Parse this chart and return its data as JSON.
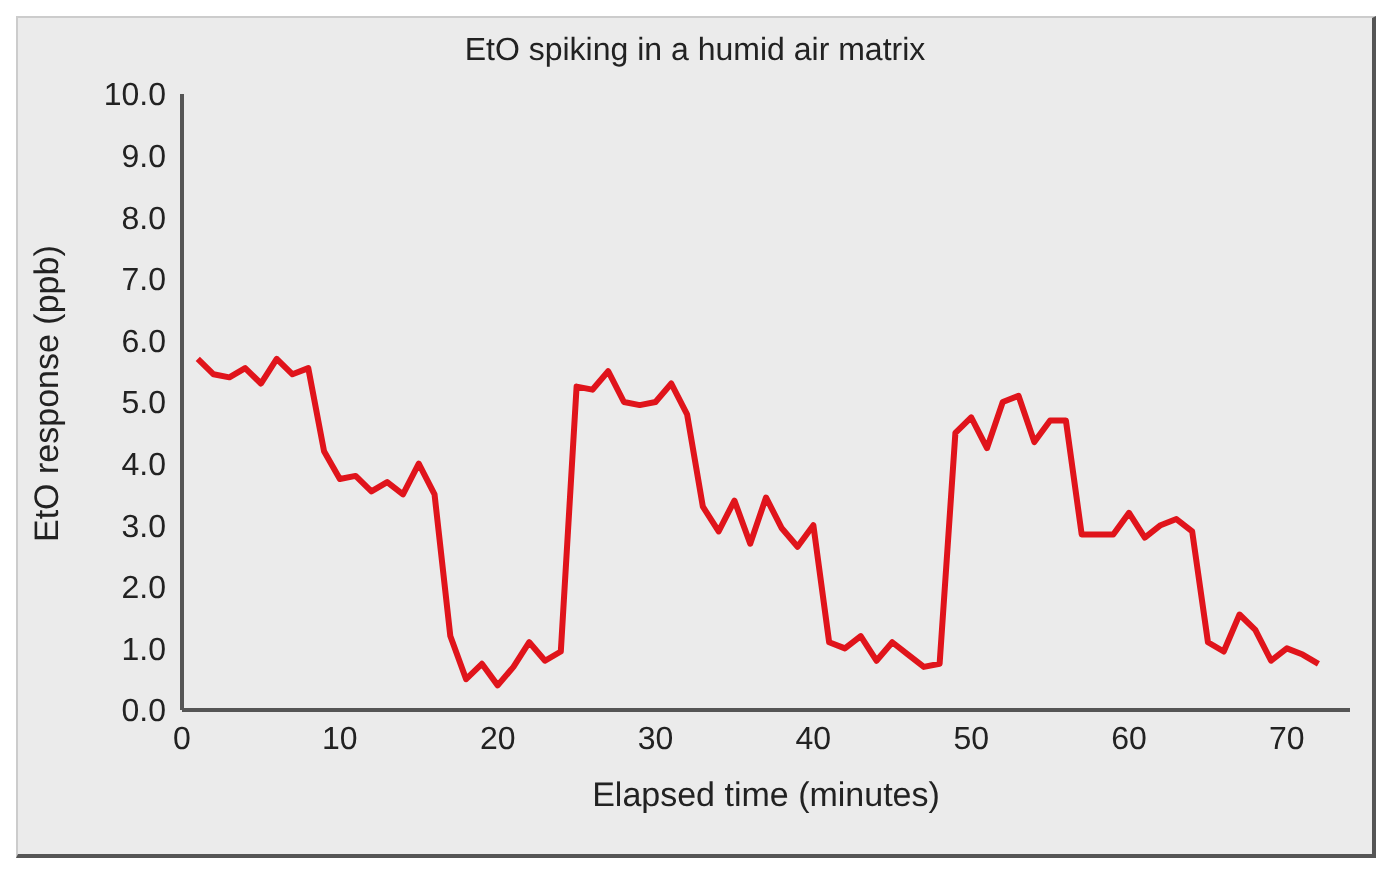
{
  "chart_data": {
    "type": "line",
    "title": "EtO spiking in a humid air matrix",
    "xlabel": "Elapsed time (minutes)",
    "ylabel": "EtO response (ppb)",
    "x": [
      1,
      2,
      3,
      4,
      5,
      6,
      7,
      8,
      9,
      10,
      11,
      12,
      13,
      14,
      15,
      16,
      17,
      18,
      19,
      20,
      21,
      22,
      23,
      24,
      25,
      26,
      27,
      28,
      29,
      30,
      31,
      32,
      33,
      34,
      35,
      36,
      37,
      38,
      39,
      40,
      41,
      42,
      43,
      44,
      45,
      46,
      47,
      48,
      49,
      50,
      51,
      52,
      53,
      54,
      55,
      56,
      57,
      58,
      59,
      60,
      61,
      62,
      63,
      64,
      65,
      66,
      67,
      68,
      69,
      70,
      71,
      72
    ],
    "series": [
      {
        "color": "#e0141b",
        "values": [
          5.7,
          5.45,
          5.4,
          5.55,
          5.3,
          5.7,
          5.45,
          5.55,
          4.2,
          3.75,
          3.8,
          3.55,
          3.7,
          3.5,
          4.0,
          3.5,
          1.2,
          0.5,
          0.75,
          0.4,
          0.7,
          1.1,
          0.8,
          0.95,
          5.25,
          5.2,
          5.5,
          5.0,
          4.95,
          5.0,
          5.3,
          4.8,
          3.3,
          2.9,
          3.4,
          2.7,
          3.45,
          2.95,
          2.65,
          3.0,
          1.1,
          1.0,
          1.2,
          0.8,
          1.1,
          0.9,
          0.7,
          0.75,
          4.5,
          4.75,
          4.25,
          5.0,
          5.1,
          4.35,
          4.7,
          4.7,
          2.85,
          2.85,
          2.85,
          3.2,
          2.8,
          3.0,
          3.1,
          2.9,
          1.1,
          0.95,
          1.55,
          1.3,
          0.8,
          1.0,
          0.9,
          0.75
        ]
      }
    ],
    "xlim": [
      0,
      74
    ],
    "xticks": [
      0,
      10,
      20,
      30,
      40,
      50,
      60,
      70
    ],
    "ylim": [
      0,
      10
    ],
    "yticks": [
      {
        "value": 0,
        "label": "0.0"
      },
      {
        "value": 1,
        "label": "1.0"
      },
      {
        "value": 2,
        "label": "2.0"
      },
      {
        "value": 3,
        "label": "3.0"
      },
      {
        "value": 4,
        "label": "4.0"
      },
      {
        "value": 5,
        "label": "5.0"
      },
      {
        "value": 6,
        "label": "6.0"
      },
      {
        "value": 7,
        "label": "7.0"
      },
      {
        "value": 8,
        "label": "8.0"
      },
      {
        "value": 9,
        "label": "9.0"
      },
      {
        "value": 10,
        "label": "10.0"
      }
    ],
    "grid": false,
    "legend": false,
    "marker": "none",
    "line_style": "solid"
  }
}
